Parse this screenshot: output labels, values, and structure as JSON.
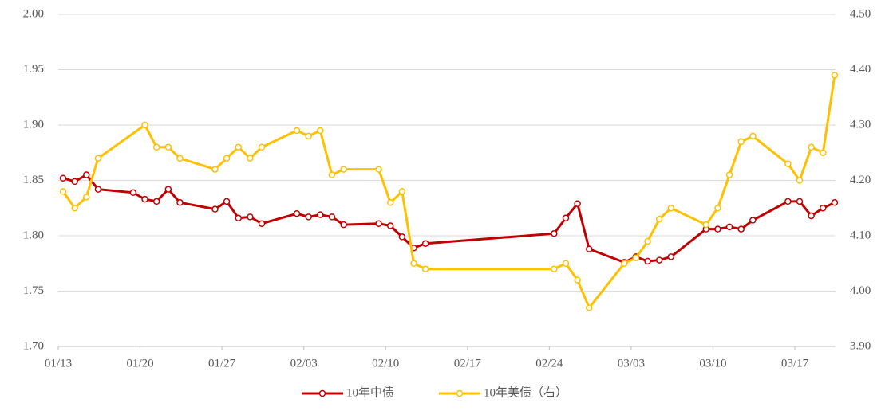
{
  "chart_data": {
    "type": "line",
    "xticks": [
      "01/13",
      "01/20",
      "01/27",
      "02/03",
      "02/10",
      "02/17",
      "02/24",
      "03/03",
      "03/10",
      "03/17"
    ],
    "ylim": [
      1.7,
      2.0
    ],
    "yticks": [
      {
        "value": 1.7,
        "label": "1.70"
      },
      {
        "value": 1.75,
        "label": "1.75"
      },
      {
        "value": 1.8,
        "label": "1.80"
      },
      {
        "value": 1.85,
        "label": "1.85"
      },
      {
        "value": 1.9,
        "label": "1.90"
      },
      {
        "value": 1.95,
        "label": "1.95"
      },
      {
        "value": 2.0,
        "label": "2.00"
      }
    ],
    "y2lim": [
      3.9,
      4.5
    ],
    "y2ticks": [
      {
        "value": 3.9,
        "label": "3.90"
      },
      {
        "value": 4.0,
        "label": "4.00"
      },
      {
        "value": 4.1,
        "label": "4.10"
      },
      {
        "value": 4.2,
        "label": "4.20"
      },
      {
        "value": 4.3,
        "label": "4.30"
      },
      {
        "value": 4.4,
        "label": "4.40"
      },
      {
        "value": 4.5,
        "label": "4.50"
      }
    ],
    "grid": true,
    "legend": "bottom",
    "series": [
      {
        "name": "10年中债",
        "color": "#c00000",
        "x": [
          "01/13",
          "01/14",
          "01/15",
          "01/16",
          "01/19",
          "01/20",
          "01/21",
          "01/22",
          "01/23",
          "01/26",
          "01/27",
          "01/28",
          "01/29",
          "01/30",
          "02/02",
          "02/03",
          "02/04",
          "02/05",
          "02/06",
          "02/09",
          "02/10",
          "02/11",
          "02/12",
          "02/13",
          "02/24",
          "02/25",
          "02/26",
          "02/27",
          "03/02",
          "03/03",
          "03/04",
          "03/05",
          "03/06",
          "03/09",
          "03/10",
          "03/11",
          "03/12",
          "03/13",
          "03/16",
          "03/17",
          "03/18",
          "03/19",
          "03/20"
        ],
        "values": [
          1.852,
          1.849,
          1.855,
          1.842,
          1.839,
          1.833,
          1.831,
          1.842,
          1.83,
          1.824,
          1.831,
          1.816,
          1.817,
          1.811,
          1.82,
          1.817,
          1.819,
          1.817,
          1.81,
          1.811,
          1.809,
          1.799,
          1.789,
          1.793,
          1.802,
          1.816,
          1.829,
          1.788,
          1.776,
          1.781,
          1.777,
          1.778,
          1.781,
          1.806,
          1.806,
          1.808,
          1.806,
          1.814,
          1.831,
          1.831,
          1.818,
          1.825,
          1.83
        ]
      },
      {
        "name": "10年美债（右）",
        "color": "#ffc000",
        "axis": "y2",
        "x": [
          "01/13",
          "01/14",
          "01/15",
          "01/16",
          "01/20",
          "01/21",
          "01/22",
          "01/23",
          "01/26",
          "01/27",
          "01/28",
          "01/29",
          "01/30",
          "02/02",
          "02/03",
          "02/04",
          "02/05",
          "02/06",
          "02/09",
          "02/10",
          "02/11",
          "02/12",
          "02/13",
          "02/24",
          "02/25",
          "02/26",
          "02/27",
          "03/02",
          "03/03",
          "03/04",
          "03/05",
          "03/06",
          "03/09",
          "03/10",
          "03/11",
          "03/12",
          "03/13",
          "03/16",
          "03/17",
          "03/18",
          "03/19",
          "03/20"
        ],
        "values": [
          4.18,
          4.15,
          4.17,
          4.24,
          4.3,
          4.26,
          4.26,
          4.24,
          4.22,
          4.24,
          4.26,
          4.24,
          4.26,
          4.29,
          4.28,
          4.29,
          4.21,
          4.22,
          4.22,
          4.16,
          4.18,
          4.05,
          4.04,
          4.04,
          4.05,
          4.02,
          3.97,
          4.05,
          4.06,
          4.09,
          4.13,
          4.15,
          4.12,
          4.15,
          4.21,
          4.27,
          4.28,
          4.23,
          4.2,
          4.26,
          4.25,
          4.39
        ]
      }
    ]
  }
}
